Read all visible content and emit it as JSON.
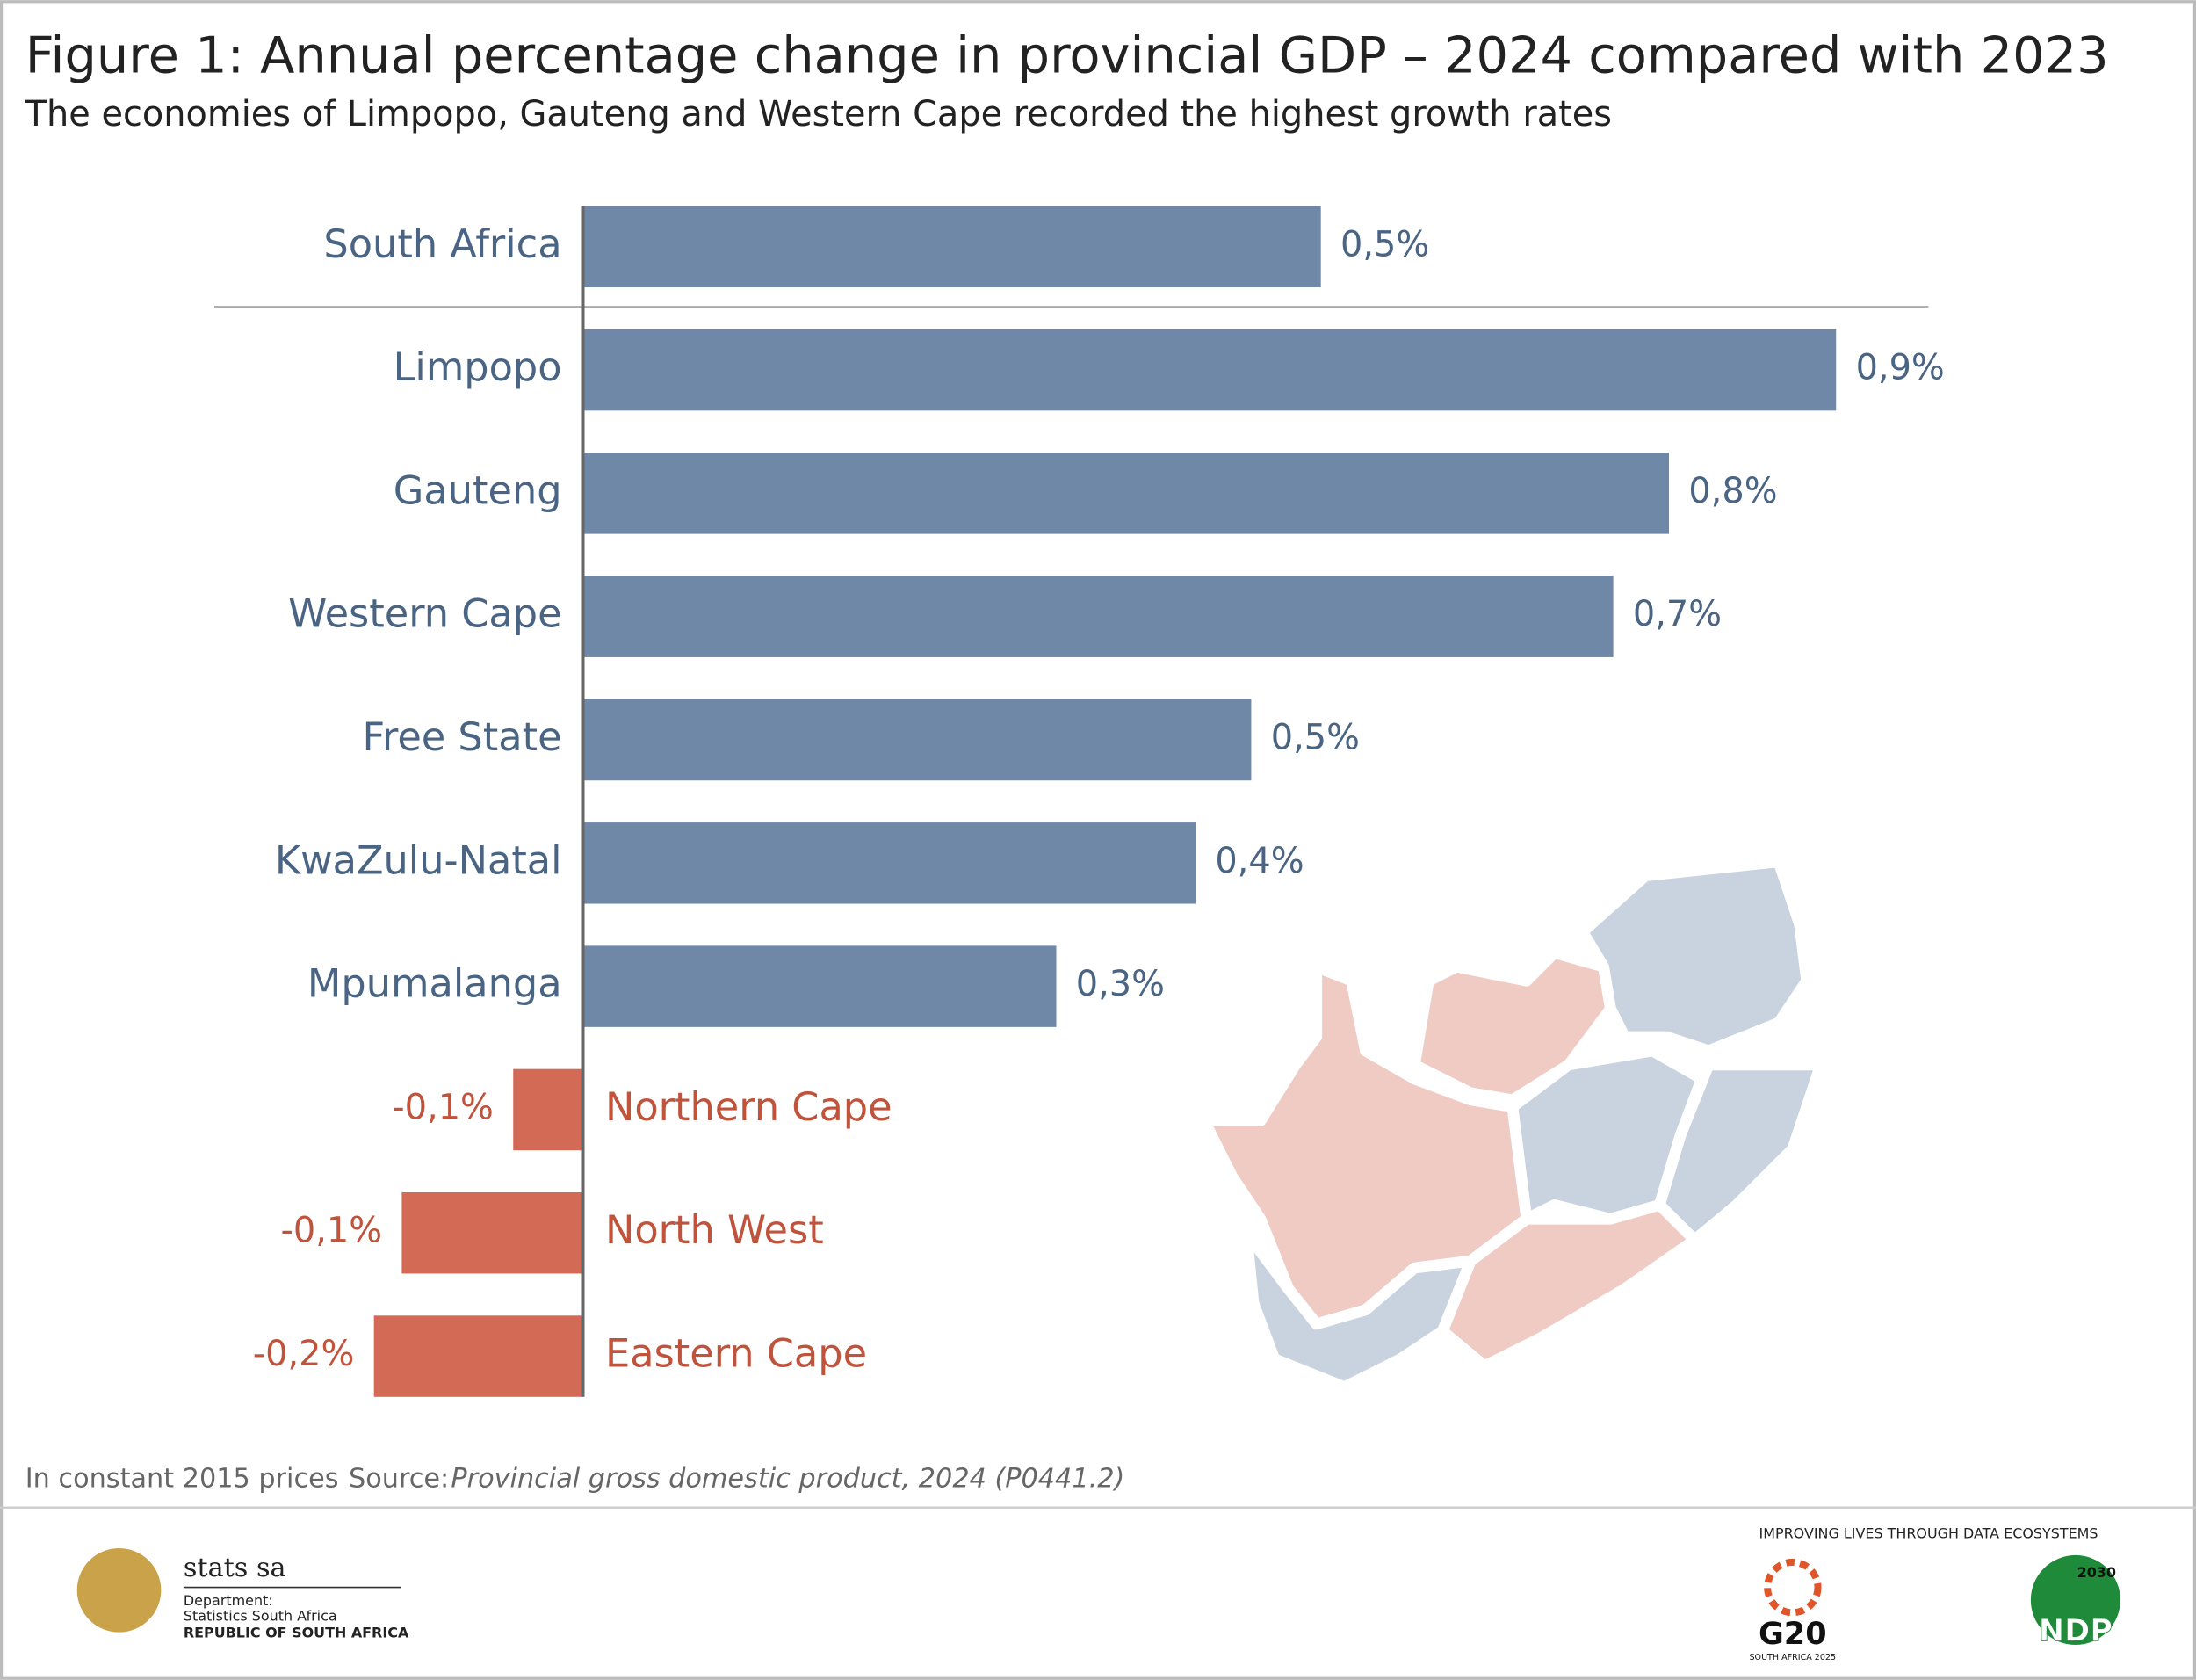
{
  "chart_data": {
    "type": "barh",
    "title": "Figure 1: Annual percentage change in provincial GDP – 2024 compared with 2023",
    "subtitle": "The economies of Limpopo, Gauteng and Western Cape recorded the highest growth rates",
    "categories": [
      "South Africa",
      "Limpopo",
      "Gauteng",
      "Western Cape",
      "Free State",
      "KwaZulu-Natal",
      "Mpumalanga",
      "Northern Cape",
      "North West",
      "Eastern Cape"
    ],
    "values": [
      0.53,
      0.9,
      0.78,
      0.74,
      0.48,
      0.44,
      0.34,
      -0.05,
      -0.13,
      -0.15
    ],
    "value_labels": [
      "0,5%",
      "0,9%",
      "0,8%",
      "0,7%",
      "0,5%",
      "0,4%",
      "0,3%",
      "-0,1%",
      "-0,1%",
      "-0,2%"
    ],
    "color": "#6f88a8",
    "negative_color": "#d26a55",
    "label_color": "#4a6483",
    "negative_label_color": "#c0533c",
    "xlim": [
      -0.15,
      0.9
    ],
    "note": "In constant 2015 prices",
    "source_label": "Source:",
    "source": "Provincial gross domestic product, 2024 (P0441.2)",
    "footer": {
      "org": "stats sa",
      "dept": "Department:",
      "dept_name": "Statistics South Africa",
      "republic": "REPUBLIC OF SOUTH AFRICA",
      "slogan": "IMPROVING LIVES THROUGH DATA ECOSYSTEMS",
      "g20": "G20",
      "g20_sub": "SOUTH AFRICA 2025",
      "ndp_year": "2030",
      "ndp": "NDP"
    }
  }
}
